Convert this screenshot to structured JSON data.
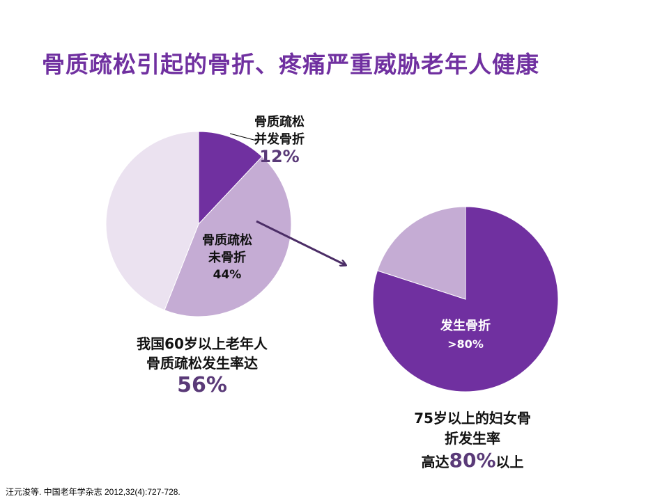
{
  "title": "骨质疏松引起的骨折、疼痛严重威胁老年人健康",
  "colors": {
    "dark": "#7030a0",
    "medium": "#c5acd4",
    "light": "#ebe2f0",
    "arrow": "#4b2d66",
    "title": "#7030a0"
  },
  "chart_data": [
    {
      "type": "pie",
      "slices": [
        {
          "name": "骨质疏松并发骨折",
          "value": 12,
          "label": "12%",
          "color": "#7030a0"
        },
        {
          "name": "骨质疏松未骨折",
          "value": 44,
          "label": "44%",
          "color": "#c5acd4"
        },
        {
          "value": 44,
          "color": "#ebe2f0"
        }
      ],
      "caption_line1": "我国60岁以上老年人",
      "caption_line2": "骨质疏松发生率达",
      "caption_value": "56%",
      "label_fracture_1": "骨质疏松",
      "label_fracture_2": "并发骨折",
      "label_nofracture_1": "骨质疏松",
      "label_nofracture_2": "未骨折"
    },
    {
      "type": "pie",
      "slices": [
        {
          "name": "发生骨折",
          "value": 80,
          "label": ">80%",
          "color": "#7030a0"
        },
        {
          "value": 20,
          "color": "#c5acd4"
        }
      ],
      "caption_line1": "75岁以上的妇女骨",
      "caption_line2": "折发生率",
      "caption_prefix": "高达",
      "caption_value": "80%",
      "caption_suffix": "以上"
    }
  ],
  "source": "汪元浚等. 中国老年学杂志 2012,32(4):727-728."
}
